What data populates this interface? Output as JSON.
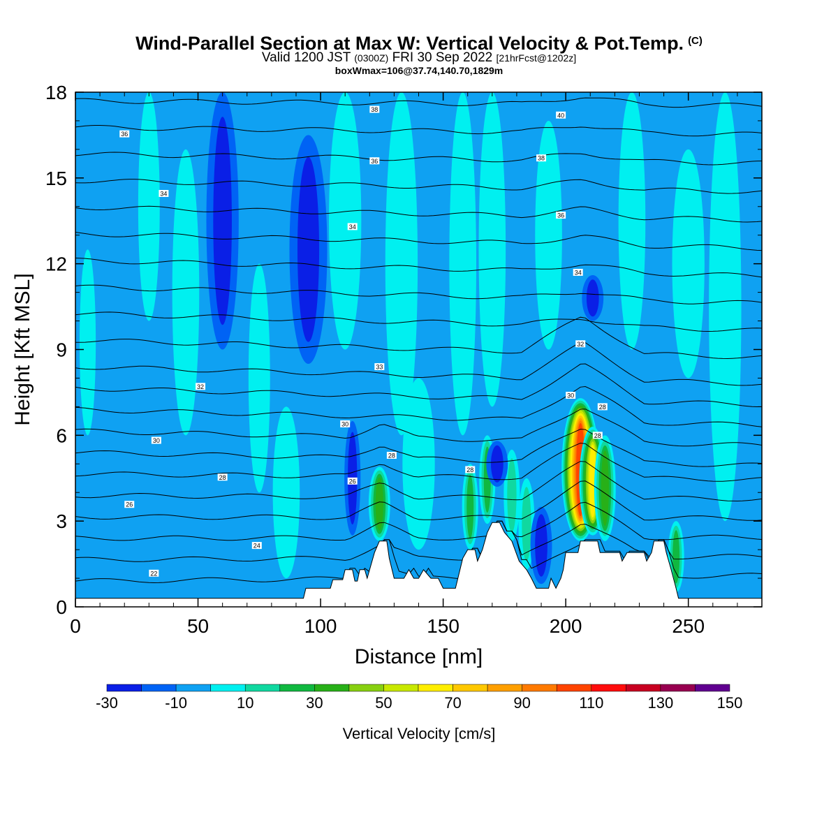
{
  "title": "Wind-Parallel Section at Max W: Vertical Velocity & Pot.Temp.",
  "copyright_mark": "(C)",
  "subtitle": {
    "main": "Valid 1200 JST",
    "utc": "(0300Z)",
    "date": "FRI 30 Sep 2022",
    "fcst": "[21hrFcst@1202z]"
  },
  "box_info": "boxWmax=106@37.74,140.70,1829m",
  "colors": {
    "background_field": "#0fa1f2",
    "level_m20": "#0063f5",
    "level_m30": "#0a1fe6",
    "level_0_10": "#00f0f0",
    "level_10_20": "#10d8a0",
    "level_20_30": "#10b840",
    "level_30_40": "#28b018",
    "level_40_50": "#88d010",
    "level_50_60": "#c8e800",
    "level_60_70": "#ffee00",
    "level_70_80": "#ffc800",
    "level_80_90": "#ff9f00",
    "level_90_100": "#ff7a00",
    "level_100_110": "#ff4400",
    "level_110_120": "#ff0c0c",
    "level_120_130": "#c80020",
    "level_130_140": "#980050",
    "level_140_150": "#600090",
    "terrain": "#ffffff",
    "contour": "#000000"
  },
  "chart_data": {
    "type": "heatmap",
    "xlabel": "Distance [nm]",
    "ylabel": "Height [Kft MSL]",
    "xlim": [
      0,
      280
    ],
    "ylim": [
      0,
      18
    ],
    "x_ticks": [
      0,
      50,
      100,
      150,
      200,
      250
    ],
    "y_ticks": [
      0,
      3,
      6,
      9,
      12,
      15,
      18
    ],
    "colorbar": {
      "label": "Vertical Velocity [cm/s]",
      "levels": [
        -30,
        -20,
        -10,
        0,
        10,
        20,
        30,
        40,
        50,
        60,
        70,
        80,
        90,
        100,
        110,
        120,
        130,
        140,
        150
      ],
      "tick_labels": [
        "-30",
        "-10",
        "10",
        "30",
        "50",
        "70",
        "90",
        "110",
        "130",
        "150"
      ],
      "colors": [
        "#0a1fe6",
        "#0063f5",
        "#0fa1f2",
        "#00f0f0",
        "#10d8a0",
        "#10b840",
        "#28b018",
        "#88d010",
        "#c8e800",
        "#ffee00",
        "#ffc800",
        "#ff9f00",
        "#ff7a00",
        "#ff4400",
        "#ff0c0c",
        "#c80020",
        "#980050",
        "#600090"
      ]
    },
    "terrain_profile": [
      {
        "x": 0,
        "h": 0.3
      },
      {
        "x": 93,
        "h": 0.3
      },
      {
        "x": 94,
        "h": 0.65
      },
      {
        "x": 104,
        "h": 0.65
      },
      {
        "x": 105,
        "h": 0.95
      },
      {
        "x": 109,
        "h": 0.95
      },
      {
        "x": 110,
        "h": 1.3
      },
      {
        "x": 113,
        "h": 1.3
      },
      {
        "x": 114,
        "h": 0.9
      },
      {
        "x": 115,
        "h": 0.9
      },
      {
        "x": 116,
        "h": 1.3
      },
      {
        "x": 118,
        "h": 1.3
      },
      {
        "x": 119,
        "h": 1.0
      },
      {
        "x": 120,
        "h": 1.3
      },
      {
        "x": 121,
        "h": 1.6
      },
      {
        "x": 122,
        "h": 1.9
      },
      {
        "x": 124,
        "h": 2.3
      },
      {
        "x": 127,
        "h": 2.3
      },
      {
        "x": 128,
        "h": 1.7
      },
      {
        "x": 130,
        "h": 1.0
      },
      {
        "x": 134,
        "h": 1.0
      },
      {
        "x": 136,
        "h": 1.3
      },
      {
        "x": 138,
        "h": 1.0
      },
      {
        "x": 140,
        "h": 1.0
      },
      {
        "x": 142,
        "h": 1.3
      },
      {
        "x": 145,
        "h": 1.0
      },
      {
        "x": 148,
        "h": 1.0
      },
      {
        "x": 150,
        "h": 0.65
      },
      {
        "x": 155,
        "h": 0.65
      },
      {
        "x": 156,
        "h": 1.0
      },
      {
        "x": 158,
        "h": 1.7
      },
      {
        "x": 160,
        "h": 2.0
      },
      {
        "x": 163,
        "h": 2.0
      },
      {
        "x": 164,
        "h": 1.6
      },
      {
        "x": 166,
        "h": 2.0
      },
      {
        "x": 168,
        "h": 2.6
      },
      {
        "x": 170,
        "h": 2.95
      },
      {
        "x": 173,
        "h": 2.95
      },
      {
        "x": 175,
        "h": 2.6
      },
      {
        "x": 178,
        "h": 2.3
      },
      {
        "x": 181,
        "h": 1.6
      },
      {
        "x": 184,
        "h": 1.3
      },
      {
        "x": 186,
        "h": 1.0
      },
      {
        "x": 188,
        "h": 0.65
      },
      {
        "x": 193,
        "h": 0.65
      },
      {
        "x": 194,
        "h": 1.0
      },
      {
        "x": 196,
        "h": 0.65
      },
      {
        "x": 198,
        "h": 1.0
      },
      {
        "x": 199,
        "h": 1.3
      },
      {
        "x": 200,
        "h": 1.9
      },
      {
        "x": 205,
        "h": 1.9
      },
      {
        "x": 206,
        "h": 2.3
      },
      {
        "x": 213,
        "h": 2.3
      },
      {
        "x": 214,
        "h": 1.9
      },
      {
        "x": 222,
        "h": 1.9
      },
      {
        "x": 223,
        "h": 1.6
      },
      {
        "x": 225,
        "h": 1.9
      },
      {
        "x": 232,
        "h": 1.9
      },
      {
        "x": 233,
        "h": 1.6
      },
      {
        "x": 235,
        "h": 1.9
      },
      {
        "x": 236,
        "h": 2.3
      },
      {
        "x": 240,
        "h": 2.3
      },
      {
        "x": 241,
        "h": 1.9
      },
      {
        "x": 243,
        "h": 1.3
      },
      {
        "x": 245,
        "h": 0.65
      },
      {
        "x": 246,
        "h": 0.3
      },
      {
        "x": 280,
        "h": 0.3
      }
    ],
    "w_features": [
      {
        "x": 206,
        "y0": 2.3,
        "y1": 7.3,
        "w": 3.5,
        "peak": 106
      },
      {
        "x": 211,
        "y0": 2.5,
        "y1": 6.3,
        "w": 2.5,
        "peak": 62
      },
      {
        "x": 216,
        "y0": 2.3,
        "y1": 6.0,
        "w": 2.0,
        "peak": 32
      },
      {
        "x": 124,
        "y0": 2.3,
        "y1": 4.9,
        "w": 2.0,
        "peak": 35
      },
      {
        "x": 168,
        "y0": 2.9,
        "y1": 6.0,
        "w": 1.5,
        "peak": 28
      },
      {
        "x": 161,
        "y0": 2.0,
        "y1": 5.0,
        "w": 1.5,
        "peak": 22
      },
      {
        "x": 178,
        "y0": 2.3,
        "y1": 5.5,
        "w": 1.5,
        "peak": 18
      },
      {
        "x": 184,
        "y0": 1.3,
        "y1": 4.5,
        "w": 1.5,
        "peak": 18
      },
      {
        "x": 245,
        "y0": 0.5,
        "y1": 3.0,
        "w": 1.5,
        "peak": 22
      },
      {
        "x": 190,
        "y0": 0.8,
        "y1": 3.5,
        "w": 2.0,
        "peak": -28
      },
      {
        "x": 113,
        "y0": 2.5,
        "y1": 6.5,
        "w": 1.5,
        "peak": -22
      },
      {
        "x": 60,
        "y0": 9.0,
        "y1": 18.0,
        "w": 3.0,
        "peak": -20
      },
      {
        "x": 95,
        "y0": 8.5,
        "y1": 16.5,
        "w": 3.5,
        "peak": -22
      },
      {
        "x": 211,
        "y0": 10.0,
        "y1": 11.6,
        "w": 2.0,
        "peak": -22
      },
      {
        "x": 172,
        "y0": 4.2,
        "y1": 5.8,
        "w": 2.0,
        "peak": -22
      },
      {
        "x": 30,
        "y0": 10.0,
        "y1": 18.0,
        "w": 2.0,
        "peak": 5
      },
      {
        "x": 45,
        "y0": 6.0,
        "y1": 16.0,
        "w": 2.5,
        "peak": 5
      },
      {
        "x": 75,
        "y0": 4.0,
        "y1": 12.0,
        "w": 2.0,
        "peak": 5
      },
      {
        "x": 110,
        "y0": 9.0,
        "y1": 18.0,
        "w": 3.0,
        "peak": 5
      },
      {
        "x": 133,
        "y0": 6.0,
        "y1": 18.0,
        "w": 3.0,
        "peak": 5
      },
      {
        "x": 158,
        "y0": 6.0,
        "y1": 18.0,
        "w": 2.5,
        "peak": 5
      },
      {
        "x": 170,
        "y0": 7.0,
        "y1": 18.0,
        "w": 2.5,
        "peak": 5
      },
      {
        "x": 193,
        "y0": 9.0,
        "y1": 17.0,
        "w": 2.5,
        "peak": 5
      },
      {
        "x": 227,
        "y0": 9.0,
        "y1": 18.0,
        "w": 2.5,
        "peak": 5
      },
      {
        "x": 265,
        "y0": 3.0,
        "y1": 18.0,
        "w": 3.0,
        "peak": 5
      },
      {
        "x": 5,
        "y0": 6.0,
        "y1": 12.5,
        "w": 1.5,
        "peak": 5
      },
      {
        "x": 250,
        "y0": 8.0,
        "y1": 16.0,
        "w": 3.0,
        "peak": 5
      },
      {
        "x": 86,
        "y0": 1.0,
        "y1": 7.0,
        "w": 2.5,
        "peak": 5
      },
      {
        "x": 140,
        "y0": 2.0,
        "y1": 8.0,
        "w": 3.0,
        "peak": 5
      }
    ],
    "theta_contours": [
      {
        "label": "22",
        "y_left": 1.2,
        "y_right": 1.0,
        "label_x": 32
      },
      {
        "label": "24",
        "y_left": 2.2,
        "y_right": 2.0,
        "label_x": 74
      },
      {
        "label": "26",
        "y_left": 3.6,
        "y_right": 3.4,
        "label_x": 22
      },
      {
        "label": "28",
        "y_left": 4.6,
        "y_right": 4.3,
        "label_x": 60
      },
      {
        "label": "30",
        "y_left": 5.8,
        "y_right": 6.0,
        "label_x": 33
      },
      {
        "label": "32",
        "y_left": 7.6,
        "y_right": 8.2,
        "label_x": 51
      },
      {
        "label": "34",
        "y_left": 14.6,
        "y_right": 13.5,
        "label_x": 36
      },
      {
        "label": "36",
        "y_left": 16.6,
        "y_right": 15.8,
        "label_x": 20
      }
    ],
    "inline_labels": [
      {
        "label": "38",
        "x": 122,
        "y": 17.4
      },
      {
        "label": "40",
        "x": 198,
        "y": 17.2
      },
      {
        "label": "36",
        "x": 122,
        "y": 15.6
      },
      {
        "label": "38",
        "x": 190,
        "y": 15.7
      },
      {
        "label": "34",
        "x": 113,
        "y": 13.3
      },
      {
        "label": "36",
        "x": 198,
        "y": 13.7
      },
      {
        "label": "34",
        "x": 205,
        "y": 11.7
      },
      {
        "label": "32",
        "x": 206,
        "y": 9.2
      },
      {
        "label": "33",
        "x": 124,
        "y": 8.4
      },
      {
        "label": "30",
        "x": 110,
        "y": 6.4
      },
      {
        "label": "28",
        "x": 129,
        "y": 5.3
      },
      {
        "label": "26",
        "x": 113,
        "y": 4.4
      },
      {
        "label": "28",
        "x": 161,
        "y": 4.8
      },
      {
        "label": "30",
        "x": 202,
        "y": 7.4
      },
      {
        "label": "28",
        "x": 215,
        "y": 7.0
      },
      {
        "label": "28",
        "x": 213,
        "y": 6.0
      }
    ]
  }
}
